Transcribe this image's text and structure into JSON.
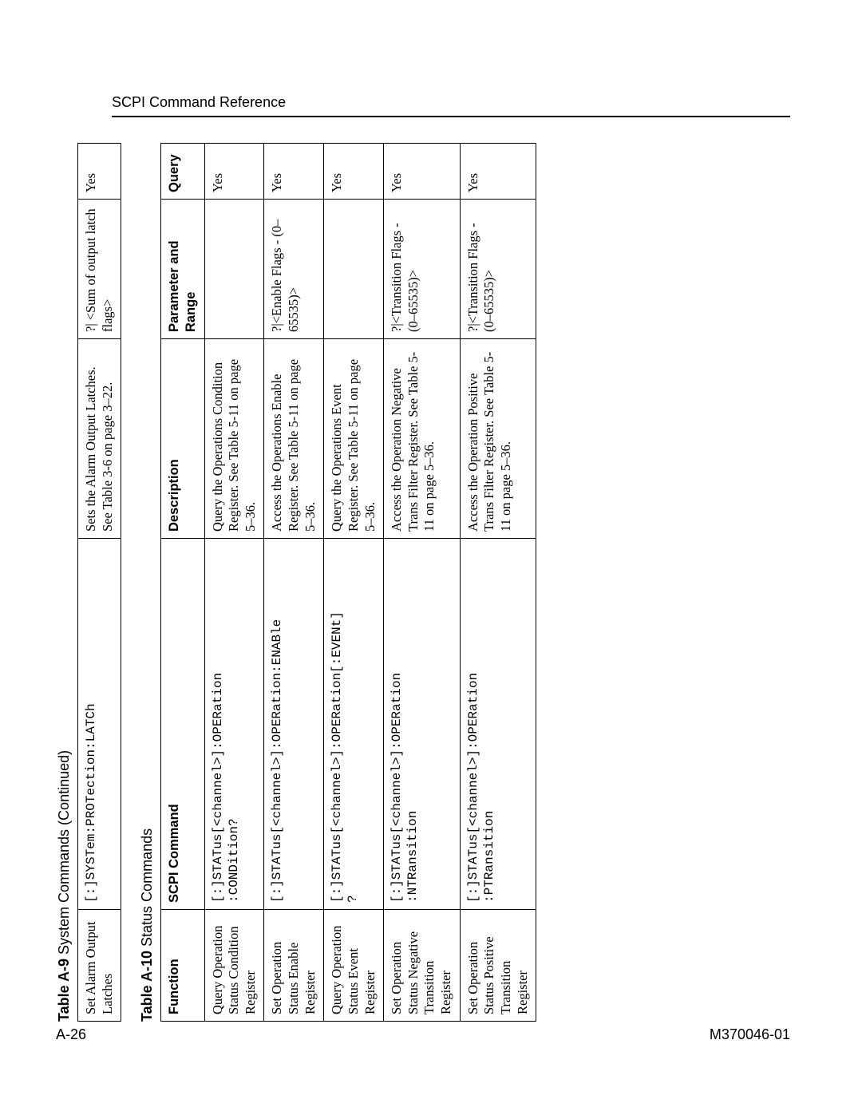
{
  "page": {
    "running_head": "SCPI Command Reference",
    "footer_left": "A-26",
    "footer_right": "M370046-01"
  },
  "table_a9": {
    "caption_prefix": "Table A-9",
    "caption_rest": "  System Commands (Continued)",
    "row": {
      "function": "Set Alarm Output Latches",
      "command": "[:]SYSTem:PROTection:LATCh",
      "description": "Sets the Alarm Output Latches. See Table 3-6 on page 3–22.",
      "parameter": "?| <Sum of output latch flags>",
      "query": "Yes"
    }
  },
  "table_a10": {
    "caption_prefix": "Table A-10",
    "caption_rest": "  Status Commands",
    "headers": {
      "function": "Function",
      "command": "SCPI Command",
      "description": "Description",
      "parameter": "Parameter and Range",
      "query": "Query"
    },
    "rows": [
      {
        "function": "Query Operation Status Condition Register",
        "command": "[:]STATus[<channel>]:OPERation\n:CONDition?",
        "description": "Query the Operations Condition Register.\nSee Table 5-11 on page 5–36.",
        "parameter": "",
        "query": "Yes"
      },
      {
        "function": "Set Operation Status Enable Register",
        "command": "[:]STATus[<channel>]:OPERation:ENABle",
        "description": "Access the Operations Enable Register.\nSee Table 5-11 on page 5–36.",
        "parameter": "?|<Enable Flags - (0–65535)>",
        "query": "Yes"
      },
      {
        "function": "Query Operation Status Event Register",
        "command": "[:]STATus[<channel>]:OPERation[:EVENt]\n?",
        "description": "Query the Operations Event Register.\nSee Table 5-11 on page 5–36.",
        "parameter": "",
        "query": "Yes"
      },
      {
        "function": "Set Operation Status Negative Transition Register",
        "command": "[:]STATus[<channel>]:OPERation\n:NTRansition",
        "description": "Access the Operation Negative Trans Filter Register.\nSee Table 5-11 on page 5–36.",
        "parameter": "?|<Transition Flags - (0–65535)>",
        "query": "Yes"
      },
      {
        "function": "Set Operation Status Positive Transition Register",
        "command": "[:]STATus[<channel>]:OPERation\n:PTRansition",
        "description": "Access the Operation Positive Trans Filter Register.\nSee Table 5-11 on page 5–36.",
        "parameter": "?|<Transition Flags - (0–65535)>",
        "query": "Yes"
      }
    ]
  }
}
